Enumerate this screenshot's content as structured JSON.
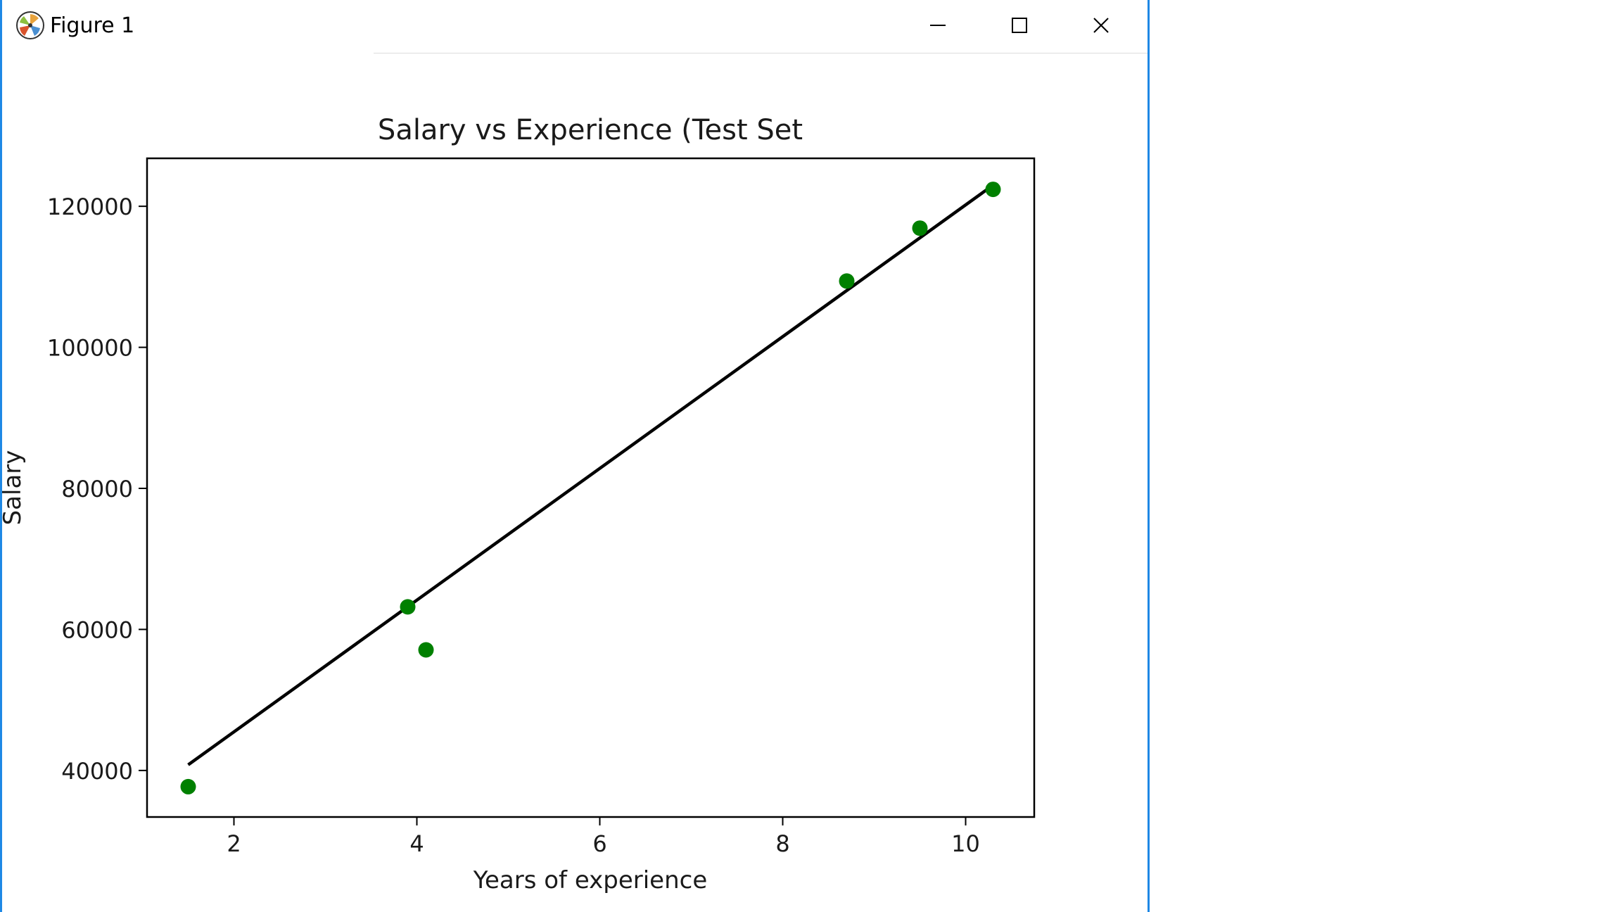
{
  "window": {
    "title": "Figure 1",
    "buttons": {
      "minimize": "minimize",
      "maximize": "maximize",
      "close": "close"
    }
  },
  "icons": {
    "app": "matplotlib-logo-icon",
    "minimize": "minimize-icon",
    "maximize": "maximize-icon",
    "close": "close-icon"
  },
  "colors": {
    "points": "#008000",
    "line": "#000000",
    "window_border": "#1e88e5"
  },
  "chart_data": {
    "type": "scatter",
    "title": "Salary vs Experience (Test Set",
    "xlabel": "Years of experience",
    "ylabel": "Salary",
    "xlim": [
      1.05,
      10.75
    ],
    "ylim": [
      33400,
      126800
    ],
    "xticks": [
      2,
      4,
      6,
      8,
      10
    ],
    "yticks": [
      40000,
      60000,
      80000,
      100000,
      120000
    ],
    "grid": false,
    "series": [
      {
        "type": "scatter",
        "color": "#008000",
        "points": [
          {
            "x": 1.5,
            "y": 37700
          },
          {
            "x": 3.9,
            "y": 63200
          },
          {
            "x": 4.1,
            "y": 57100
          },
          {
            "x": 8.7,
            "y": 109400
          },
          {
            "x": 9.5,
            "y": 116900
          },
          {
            "x": 10.3,
            "y": 122400
          }
        ]
      },
      {
        "type": "line",
        "color": "#000000",
        "points": [
          {
            "x": 1.5,
            "y": 40800
          },
          {
            "x": 10.3,
            "y": 123000
          }
        ]
      }
    ]
  }
}
